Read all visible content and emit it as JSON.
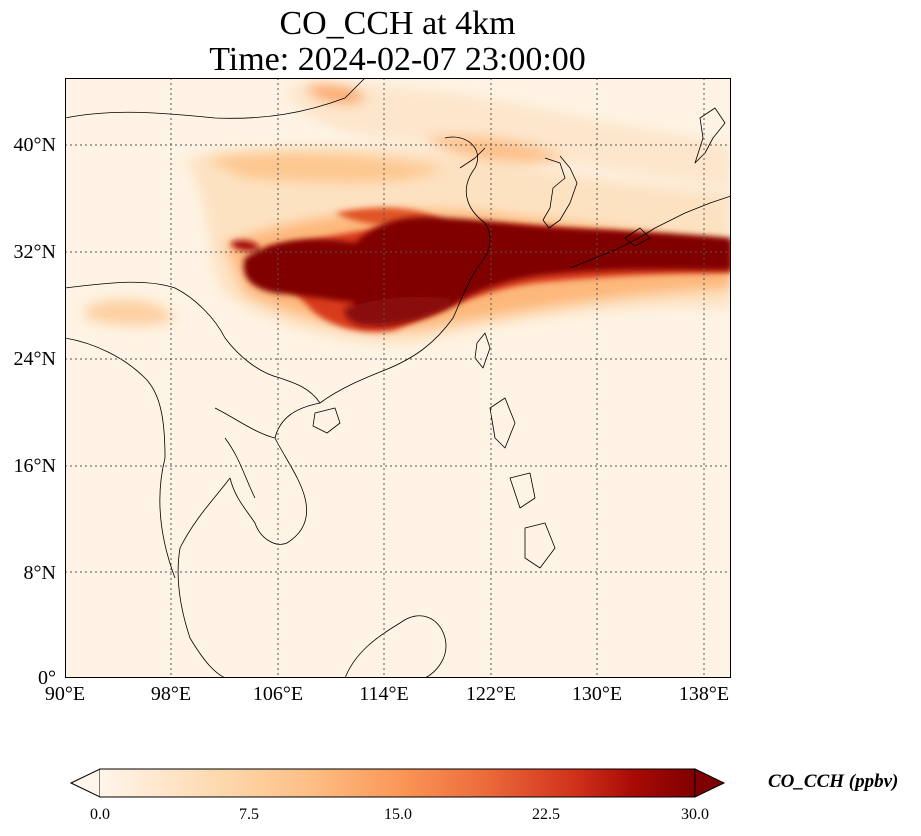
{
  "title": {
    "line1": "CO_CCH at 4km",
    "line2": "Time: 2024-02-07 23:00:00"
  },
  "map": {
    "lon_range": [
      90,
      140
    ],
    "lat_range": [
      0,
      44
    ],
    "lat_ticks": [
      {
        "value": 40,
        "label": "40°N"
      },
      {
        "value": 32,
        "label": "32°N"
      },
      {
        "value": 24,
        "label": "24°N"
      },
      {
        "value": 16,
        "label": "16°N"
      },
      {
        "value": 8,
        "label": "8°N"
      },
      {
        "value": 0,
        "label": "0°"
      }
    ],
    "lon_ticks": [
      {
        "value": 90,
        "label": "90°E"
      },
      {
        "value": 98,
        "label": "98°E"
      },
      {
        "value": 106,
        "label": "106°E"
      },
      {
        "value": 114,
        "label": "114°E"
      },
      {
        "value": 122,
        "label": "122°E"
      },
      {
        "value": 130,
        "label": "130°E"
      },
      {
        "value": 138,
        "label": "138°E"
      }
    ],
    "gridlines": "dotted",
    "colormap": [
      "#fff5eb",
      "#fdd49e",
      "#fdae6b",
      "#f16913",
      "#d7301f",
      "#990000",
      "#7f0000"
    ]
  },
  "colorbar": {
    "label": "CO_CCH (ppbv)",
    "ticks": [
      "0.0",
      "7.5",
      "15.0",
      "22.5",
      "30.0"
    ],
    "min": 0,
    "max": 30,
    "extend": "both"
  }
}
